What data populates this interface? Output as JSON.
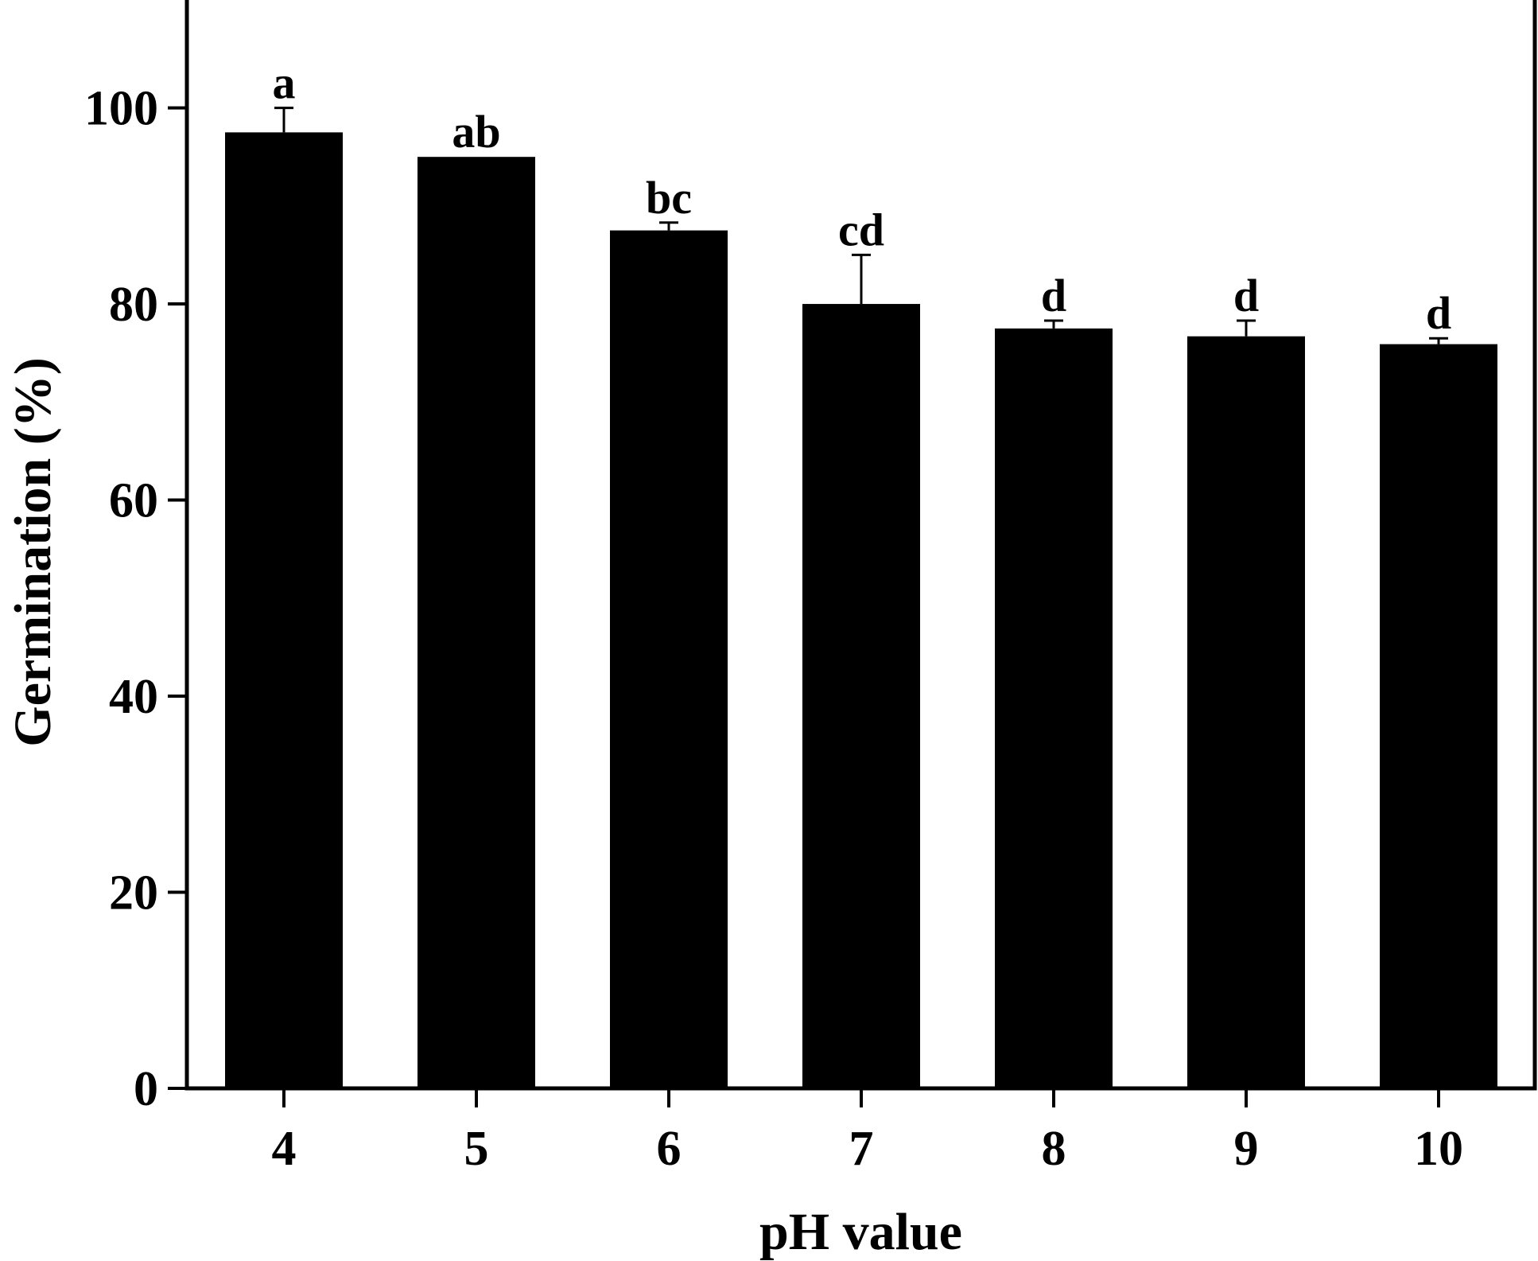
{
  "chart_data": {
    "type": "bar",
    "categories": [
      "4",
      "5",
      "6",
      "7",
      "8",
      "9",
      "10"
    ],
    "series": [
      {
        "values": [
          97.5,
          95.0,
          87.5,
          80.0,
          77.5,
          76.7,
          75.9
        ],
        "errors": [
          2.5,
          0,
          0.8,
          5.0,
          0.8,
          1.6,
          0.6
        ],
        "significance": [
          "a",
          "ab",
          "bc",
          "cd",
          "d",
          "d",
          "d"
        ]
      }
    ],
    "xlabel": "pH value",
    "ylabel": "Germination (%)",
    "ylim": [
      0,
      111
    ],
    "yticks": [
      0,
      20,
      40,
      60,
      80,
      100
    ],
    "grid": false,
    "bar_color": "#000000"
  }
}
